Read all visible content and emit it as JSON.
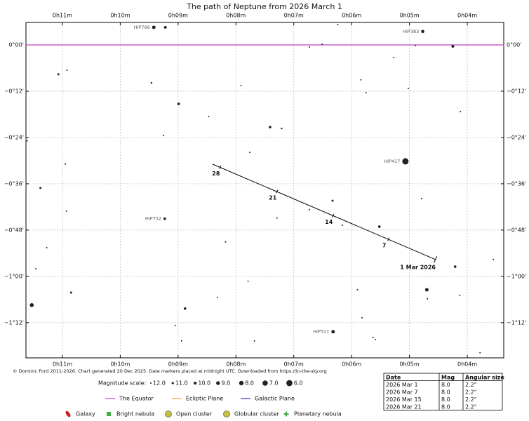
{
  "chart_data": {
    "type": "starchart",
    "title": "The path of Neptune from 2026 March 1",
    "xlim": [
      11.63,
      3.37
    ],
    "ylim": [
      -1.352,
      0.097
    ],
    "xticks": [
      {
        "value": 11,
        "label": "0h11m"
      },
      {
        "value": 10,
        "label": "0h10m"
      },
      {
        "value": 9,
        "label": "0h09m"
      },
      {
        "value": 8,
        "label": "0h08m"
      },
      {
        "value": 7,
        "label": "0h07m"
      },
      {
        "value": 6,
        "label": "0h06m"
      },
      {
        "value": 5,
        "label": "0h05m"
      },
      {
        "value": 4,
        "label": "0h04m"
      }
    ],
    "yticks": [
      {
        "value": 0,
        "label": "0°00'"
      },
      {
        "value": -0.2,
        "label": "−0°12'"
      },
      {
        "value": -0.4,
        "label": "−0°24'"
      },
      {
        "value": -0.6,
        "label": "−0°36'"
      },
      {
        "value": -0.8,
        "label": "−0°48'"
      },
      {
        "value": -1.0,
        "label": "−1°00'"
      },
      {
        "value": -1.2,
        "label": "−1°12'"
      }
    ],
    "grid": true,
    "equator": {
      "y": 0,
      "color": "#c040c0"
    },
    "stars": {
      "x": [
        9.42,
        9.22,
        6.24,
        6.73,
        6.51,
        4.9,
        4.25,
        4.77,
        11.07,
        10.92,
        9.46,
        7.91,
        5.84,
        5.75,
        5.27,
        5.02,
        8.99,
        8.47,
        7.41,
        7.21,
        4.12,
        9.25,
        11.61,
        7.76,
        5.07,
        10.95,
        11.38,
        6.33,
        4.79,
        6.73,
        10.93,
        9.23,
        7.29,
        6.16,
        5.52,
        8.18,
        11.27,
        11.46,
        4.21,
        3.55,
        7.79,
        5.9,
        4.7,
        10.85,
        4.13,
        11.53,
        8.32,
        4.69,
        8.88,
        5.82,
        9.05,
        6.32,
        5.63,
        5.59,
        8.94,
        7.68,
        3.78
      ],
      "y": [
        0.076,
        0.076,
        0.088,
        -0.009,
        0.003,
        -0.003,
        -0.006,
        0.058,
        -0.127,
        -0.109,
        -0.164,
        -0.176,
        -0.151,
        -0.206,
        -0.055,
        -0.188,
        -0.255,
        -0.309,
        -0.355,
        -0.361,
        -0.288,
        -0.391,
        -0.415,
        -0.464,
        -0.503,
        -0.515,
        -0.618,
        -0.673,
        -0.664,
        -0.712,
        -0.718,
        -0.751,
        -0.748,
        -0.779,
        -0.785,
        -0.851,
        -0.876,
        -0.967,
        -0.958,
        -0.927,
        -1.021,
        -1.058,
        -1.058,
        -1.07,
        -1.082,
        -1.124,
        -1.091,
        -1.097,
        -1.139,
        -1.179,
        -1.212,
        -1.239,
        -1.264,
        -1.273,
        -1.279,
        -1.279,
        -1.33
      ],
      "mag": [
        9.4,
        10.3,
        12.1,
        12.1,
        12.1,
        12.1,
        10.3,
        9.7,
        11.2,
        12.1,
        11.7,
        12.1,
        12.1,
        12.1,
        12.1,
        12.1,
        10.6,
        12.1,
        10.6,
        11.7,
        12.1,
        12.1,
        12.1,
        12.1,
        5.7,
        12.1,
        11.2,
        11.2,
        12.1,
        12.1,
        12.1,
        10.6,
        12.1,
        12.1,
        10.6,
        12.1,
        12.1,
        12.1,
        10.6,
        12.1,
        12.1,
        12.1,
        9.4,
        11.2,
        12.1,
        8.8,
        12.1,
        12.1,
        10.6,
        12.1,
        12.1,
        9.4,
        12.1,
        12.1,
        12.1,
        12.1,
        12.1
      ],
      "names": [
        "HIP766",
        null,
        null,
        null,
        null,
        null,
        null,
        "HIP383",
        null,
        null,
        null,
        null,
        null,
        null,
        null,
        null,
        null,
        null,
        null,
        null,
        null,
        null,
        null,
        null,
        "HIP417",
        null,
        null,
        null,
        null,
        null,
        null,
        "HIP752",
        null,
        null,
        null,
        null,
        null,
        null,
        null,
        null,
        null,
        null,
        null,
        null,
        null,
        null,
        null,
        null,
        null,
        null,
        null,
        "HIP521",
        null,
        null,
        null,
        null,
        null
      ]
    },
    "path": {
      "x": [
        4.551,
        8.406
      ],
      "y": [
        -0.927,
        -0.515
      ]
    },
    "markers": {
      "x": [
        4.551,
        5.363,
        6.321,
        7.291,
        8.272
      ],
      "y": [
        -0.927,
        -0.84,
        -0.738,
        -0.634,
        -0.529
      ],
      "labels": [
        "1 Mar 2026",
        "7",
        "14",
        "21",
        "28"
      ]
    },
    "credit": "© Dominic Ford 2011-2026. Chart generated 20 Dec 2025. Date markers placed at midnight UTC. Downloaded from https://in-the-sky.org",
    "magnitude_scale": {
      "title": "Magnitude scale:",
      "mags": [
        {
          "value": 12,
          "label": "12.0"
        },
        {
          "value": 11,
          "label": "11.0"
        },
        {
          "value": 10,
          "label": "10.0"
        },
        {
          "value": 9,
          "label": "9.0"
        },
        {
          "value": 8,
          "label": "8.0"
        },
        {
          "value": 7,
          "label": "7.0"
        },
        {
          "value": 6,
          "label": "6.0"
        }
      ]
    },
    "legend_lines": [
      {
        "name": "The Equator",
        "color": "#c040c0"
      },
      {
        "name": "Ecliptic Plane",
        "color": "#e8a030"
      },
      {
        "name": "Galactic Plane",
        "color": "#3030c0"
      }
    ],
    "legend_symbols": [
      {
        "name": "Galaxy",
        "color": "#d02020"
      },
      {
        "name": "Bright nebula",
        "color": "#40b040"
      },
      {
        "name": "Open cluster",
        "color": "#c8c040"
      },
      {
        "name": "Globular cluster",
        "color": "#c8c040"
      },
      {
        "name": "Planetary nebula",
        "color": "#40b040"
      }
    ],
    "table": {
      "header": [
        "Date",
        "Mag",
        "Angular size"
      ],
      "rows": [
        [
          "2026 Mar 1",
          "8.0",
          "2.2\""
        ],
        [
          "2026 Mar 7",
          "8.0",
          "2.2\""
        ],
        [
          "2026 Mar 15",
          "8.0",
          "2.2\""
        ],
        [
          "2026 Mar 21",
          "8.0",
          "2.2\""
        ]
      ]
    }
  }
}
